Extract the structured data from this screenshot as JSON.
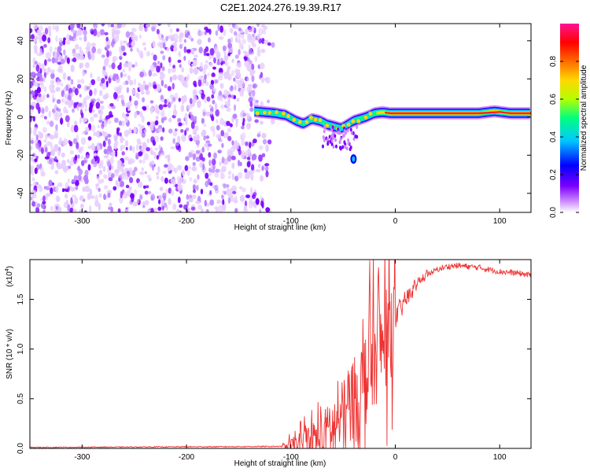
{
  "title": "C2E1.2024.276.19.39.R17",
  "chart_data": [
    {
      "type": "heatmap",
      "xlabel": "Height of straight line (km)",
      "ylabel": "Frequency (Hz)",
      "xlim": [
        -350,
        130
      ],
      "ylim": [
        -50,
        49
      ],
      "x_ticks": [
        "-300",
        "-200",
        "-100",
        "0",
        "100"
      ],
      "y_ticks": [
        "-40",
        "-20",
        "0",
        "20",
        "40"
      ],
      "colorbar": {
        "label": "Normalized spectral amplitude",
        "range": [
          0,
          1
        ],
        "ticks": [
          "0.0",
          "0.2",
          "0.4",
          "0.6",
          "0.8"
        ],
        "colors": [
          "#ffffff",
          "#cc88ff",
          "#7a00ff",
          "#0000ff",
          "#00c8ff",
          "#00ff7f",
          "#b4ff00",
          "#ffd700",
          "#ff6a00",
          "#ff0000",
          "#ff1493"
        ]
      },
      "noise_region_x": [
        -350,
        -115
      ],
      "ridge": {
        "x": [
          -135,
          -125,
          -115,
          -105,
          -95,
          -88,
          -80,
          -72,
          -65,
          -58,
          -52,
          -46,
          -40,
          -34,
          -28,
          -20,
          -12,
          -5,
          0,
          20,
          40,
          60,
          80,
          95,
          110,
          130
        ],
        "y": [
          3,
          2.5,
          2,
          1,
          -2,
          -3.5,
          -1,
          -2,
          -4,
          -5,
          -6,
          -4,
          -2,
          -1,
          0,
          2,
          2.5,
          2,
          2,
          2,
          2,
          2,
          2,
          3,
          2,
          2
        ]
      },
      "isolated_blob": {
        "x": -40,
        "y": -22
      }
    },
    {
      "type": "line",
      "xlabel": "Height of straight line (km)",
      "ylabel": "SNR (10 * v/v)",
      "multiplier": "(x10^4)",
      "xlim": [
        -350,
        130
      ],
      "ylim": [
        0,
        1.9
      ],
      "x_ticks": [
        "-300",
        "-200",
        "-100",
        "0",
        "100"
      ],
      "y_ticks": [
        "0.0",
        "0.5",
        "1.0",
        "1.5"
      ],
      "color": "#ee3333",
      "envelope": {
        "x": [
          -350,
          -110,
          -90,
          -70,
          -55,
          -45,
          -35,
          -25,
          -15,
          -8,
          0,
          10,
          20,
          30,
          40,
          50,
          60,
          70,
          80,
          90,
          100,
          110,
          120,
          130
        ],
        "y": [
          0.01,
          0.02,
          0.05,
          0.12,
          0.25,
          0.4,
          0.55,
          0.8,
          1.0,
          1.1,
          1.3,
          1.5,
          1.65,
          1.75,
          1.8,
          1.83,
          1.84,
          1.83,
          1.82,
          1.8,
          1.78,
          1.77,
          1.76,
          1.74
        ]
      }
    }
  ]
}
